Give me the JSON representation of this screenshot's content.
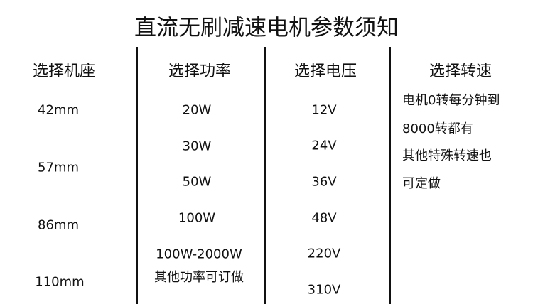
{
  "title": "直流无刷减速电机参数须知",
  "columns": [
    {
      "header": "选择机座",
      "values": [
        "42mm",
        "57mm",
        "86mm",
        "110mm"
      ]
    },
    {
      "header": "选择功率",
      "values": [
        "20W",
        "30W",
        "50W",
        "100W",
        "100W-2000W",
        "其他功率可订做"
      ]
    },
    {
      "header": "选择电压",
      "values": [
        "12V",
        "24V",
        "36V",
        "48V",
        "220V",
        "310V"
      ]
    },
    {
      "header": "选择转速",
      "values": [
        "电机0转每分钟到",
        "8000转都有",
        "其他特殊转速也",
        "可定做"
      ]
    }
  ]
}
